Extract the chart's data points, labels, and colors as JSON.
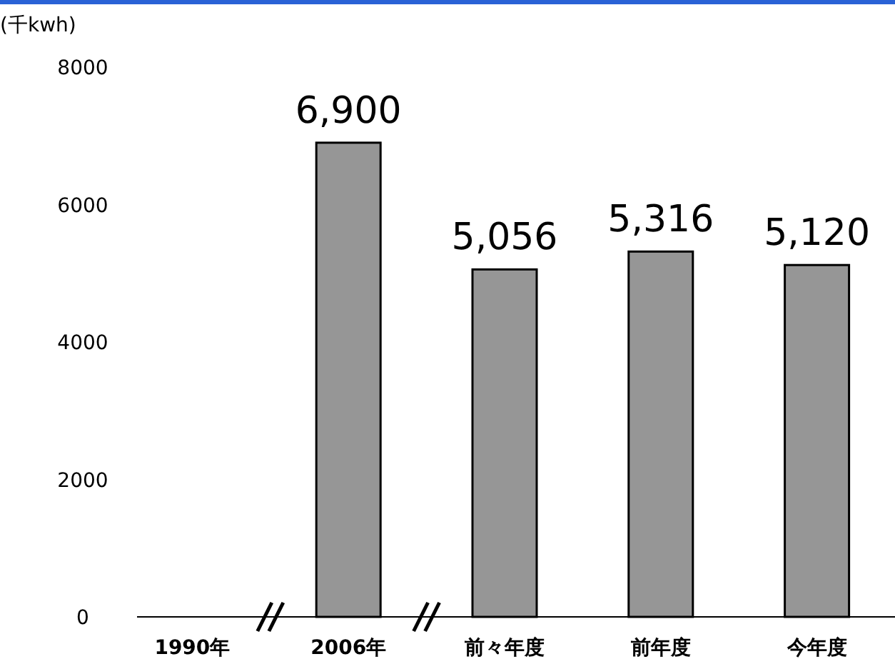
{
  "chart_data": {
    "type": "bar",
    "ylabel": "(千kwh)",
    "categories": [
      "1990年",
      "2006年",
      "前々年度",
      "前年度",
      "今年度"
    ],
    "values": [
      null,
      6900,
      5056,
      5316,
      5120
    ],
    "value_labels": [
      null,
      "6,900",
      "5,056",
      "5,316",
      "5,120"
    ],
    "color": "#969696",
    "ylim": [
      0,
      8000
    ],
    "yticks": [
      0,
      2000,
      4000,
      6000,
      8000
    ],
    "grid": false
  }
}
